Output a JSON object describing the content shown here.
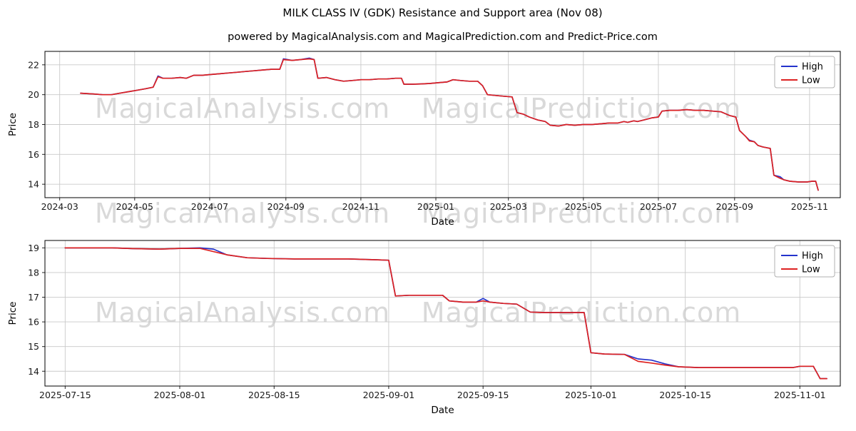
{
  "figure": {
    "title": "MILK CLASS IV (GDK) Resistance and Support area (Nov 08)",
    "watermark_left": "MagicalAnalysis.com",
    "watermark_right": "MagicalPrediction.com"
  },
  "chart_data": [
    {
      "type": "line",
      "title": "powered by MagicalAnalysis.com and MagicalPrediction.com and Predict-Price.com",
      "xlabel": "Date",
      "ylabel": "Price",
      "grid": true,
      "legend_position": "upper right",
      "xlim": [
        "2024-02-18",
        "2025-11-26"
      ],
      "ylim": [
        13.1,
        22.9
      ],
      "xticks": [
        [
          "2024-03-01",
          "2024-03"
        ],
        [
          "2024-05-01",
          "2024-05"
        ],
        [
          "2024-07-01",
          "2024-07"
        ],
        [
          "2024-09-01",
          "2024-09"
        ],
        [
          "2024-11-01",
          "2024-11"
        ],
        [
          "2025-01-01",
          "2025-01"
        ],
        [
          "2025-03-01",
          "2025-03"
        ],
        [
          "2025-05-01",
          "2025-05"
        ],
        [
          "2025-07-01",
          "2025-07"
        ],
        [
          "2025-09-01",
          "2025-09"
        ],
        [
          "2025-11-01",
          "2025-11"
        ]
      ],
      "yticks": [
        14,
        16,
        18,
        20,
        22
      ],
      "dates": [
        "2024-03-18",
        "2024-03-28",
        "2024-04-05",
        "2024-04-12",
        "2024-04-19",
        "2024-04-26",
        "2024-05-03",
        "2024-05-10",
        "2024-05-16",
        "2024-05-20",
        "2024-05-24",
        "2024-05-31",
        "2024-06-07",
        "2024-06-12",
        "2024-06-18",
        "2024-06-25",
        "2024-07-02",
        "2024-07-09",
        "2024-07-16",
        "2024-07-23",
        "2024-07-30",
        "2024-08-06",
        "2024-08-13",
        "2024-08-20",
        "2024-08-27",
        "2024-08-30",
        "2024-09-06",
        "2024-09-13",
        "2024-09-20",
        "2024-09-24",
        "2024-09-27",
        "2024-10-04",
        "2024-10-11",
        "2024-10-18",
        "2024-10-25",
        "2024-11-01",
        "2024-11-08",
        "2024-11-15",
        "2024-11-22",
        "2024-11-29",
        "2024-12-04",
        "2024-12-06",
        "2024-12-13",
        "2024-12-20",
        "2024-12-27",
        "2025-01-03",
        "2025-01-10",
        "2025-01-15",
        "2025-01-21",
        "2025-01-28",
        "2025-02-04",
        "2025-02-08",
        "2025-02-12",
        "2025-02-18",
        "2025-02-25",
        "2025-03-04",
        "2025-03-08",
        "2025-03-13",
        "2025-03-18",
        "2025-03-25",
        "2025-03-31",
        "2025-04-04",
        "2025-04-11",
        "2025-04-17",
        "2025-04-24",
        "2025-05-01",
        "2025-05-08",
        "2025-05-15",
        "2025-05-22",
        "2025-05-29",
        "2025-06-03",
        "2025-06-06",
        "2025-06-11",
        "2025-06-14",
        "2025-06-19",
        "2025-06-26",
        "2025-07-01",
        "2025-07-04",
        "2025-07-10",
        "2025-07-17",
        "2025-07-24",
        "2025-07-31",
        "2025-08-07",
        "2025-08-14",
        "2025-08-21",
        "2025-08-28",
        "2025-09-02",
        "2025-09-05",
        "2025-09-10",
        "2025-09-13",
        "2025-09-17",
        "2025-09-20",
        "2025-09-24",
        "2025-09-27",
        "2025-09-30",
        "2025-10-03",
        "2025-10-08",
        "2025-10-11",
        "2025-10-16",
        "2025-10-23",
        "2025-10-30",
        "2025-11-03",
        "2025-11-06",
        "2025-11-08"
      ],
      "series": [
        {
          "name": "High",
          "color": "#2433cc",
          "values": [
            20.1,
            20.05,
            20.0,
            20.0,
            20.1,
            20.2,
            20.3,
            20.4,
            20.5,
            21.25,
            21.1,
            21.1,
            21.15,
            21.1,
            21.3,
            21.3,
            21.35,
            21.4,
            21.45,
            21.5,
            21.55,
            21.6,
            21.65,
            21.7,
            21.7,
            22.4,
            22.3,
            22.35,
            22.45,
            22.35,
            21.1,
            21.15,
            21.0,
            20.9,
            20.95,
            21.0,
            21.0,
            21.05,
            21.05,
            21.1,
            21.1,
            20.7,
            20.7,
            20.72,
            20.75,
            20.8,
            20.85,
            21.0,
            20.95,
            20.9,
            20.9,
            20.6,
            20.0,
            19.95,
            19.9,
            19.85,
            18.8,
            18.7,
            18.5,
            18.3,
            18.2,
            17.95,
            17.9,
            18.0,
            17.95,
            18.0,
            18.0,
            18.05,
            18.1,
            18.1,
            18.2,
            18.15,
            18.25,
            18.2,
            18.3,
            18.45,
            18.5,
            18.9,
            18.95,
            18.95,
            19.0,
            18.95,
            18.95,
            18.9,
            18.85,
            18.6,
            18.5,
            17.6,
            17.2,
            16.95,
            16.85,
            16.6,
            16.5,
            16.45,
            16.4,
            14.6,
            14.5,
            14.3,
            14.2,
            14.15,
            14.15,
            14.2,
            14.2,
            13.6
          ]
        },
        {
          "name": "Low",
          "color": "#dd2222",
          "values": [
            20.1,
            20.05,
            20.0,
            20.0,
            20.1,
            20.2,
            20.3,
            20.4,
            20.5,
            21.2,
            21.1,
            21.1,
            21.15,
            21.1,
            21.3,
            21.3,
            21.35,
            21.4,
            21.45,
            21.5,
            21.55,
            21.6,
            21.65,
            21.7,
            21.7,
            22.35,
            22.3,
            22.35,
            22.4,
            22.35,
            21.1,
            21.15,
            21.0,
            20.9,
            20.95,
            21.0,
            21.0,
            21.05,
            21.05,
            21.1,
            21.1,
            20.7,
            20.7,
            20.72,
            20.75,
            20.8,
            20.85,
            21.0,
            20.95,
            20.9,
            20.9,
            20.6,
            20.0,
            19.95,
            19.9,
            19.85,
            18.8,
            18.7,
            18.5,
            18.3,
            18.2,
            17.95,
            17.9,
            18.0,
            17.95,
            18.0,
            18.0,
            18.05,
            18.1,
            18.1,
            18.2,
            18.15,
            18.25,
            18.2,
            18.3,
            18.45,
            18.5,
            18.9,
            18.95,
            18.95,
            19.0,
            18.95,
            18.95,
            18.9,
            18.85,
            18.6,
            18.5,
            17.6,
            17.2,
            16.9,
            16.85,
            16.6,
            16.5,
            16.45,
            16.4,
            14.6,
            14.4,
            14.3,
            14.2,
            14.15,
            14.15,
            14.2,
            14.2,
            13.6
          ]
        }
      ]
    },
    {
      "type": "line",
      "title": "",
      "xlabel": "Date",
      "ylabel": "Price",
      "grid": true,
      "legend_position": "upper right",
      "xlim": [
        "2025-07-12",
        "2025-11-07"
      ],
      "ylim": [
        13.4,
        19.3
      ],
      "xticks": [
        [
          "2025-07-15",
          "2025-07-15"
        ],
        [
          "2025-08-01",
          "2025-08-01"
        ],
        [
          "2025-08-15",
          "2025-08-15"
        ],
        [
          "2025-09-01",
          "2025-09-01"
        ],
        [
          "2025-09-15",
          "2025-09-15"
        ],
        [
          "2025-10-01",
          "2025-10-01"
        ],
        [
          "2025-10-15",
          "2025-10-15"
        ],
        [
          "2025-11-01",
          "2025-11-01"
        ]
      ],
      "yticks": [
        14,
        15,
        16,
        17,
        18,
        19
      ],
      "dates": [
        "2025-07-15",
        "2025-07-18",
        "2025-07-22",
        "2025-07-25",
        "2025-07-29",
        "2025-08-01",
        "2025-08-04",
        "2025-08-06",
        "2025-08-08",
        "2025-08-11",
        "2025-08-14",
        "2025-08-18",
        "2025-08-22",
        "2025-08-26",
        "2025-08-30",
        "2025-09-01",
        "2025-09-02",
        "2025-09-04",
        "2025-09-06",
        "2025-09-09",
        "2025-09-10",
        "2025-09-12",
        "2025-09-14",
        "2025-09-15",
        "2025-09-16",
        "2025-09-18",
        "2025-09-20",
        "2025-09-22",
        "2025-09-24",
        "2025-09-26",
        "2025-09-28",
        "2025-09-30",
        "2025-10-01",
        "2025-10-03",
        "2025-10-06",
        "2025-10-08",
        "2025-10-10",
        "2025-10-12",
        "2025-10-14",
        "2025-10-17",
        "2025-10-21",
        "2025-10-25",
        "2025-10-29",
        "2025-10-31",
        "2025-11-01",
        "2025-11-03",
        "2025-11-04",
        "2025-11-05"
      ],
      "series": [
        {
          "name": "High",
          "color": "#2433cc",
          "values": [
            19.0,
            19.0,
            19.0,
            18.97,
            18.95,
            18.98,
            19.0,
            18.95,
            18.72,
            18.6,
            18.57,
            18.55,
            18.55,
            18.55,
            18.52,
            18.5,
            17.05,
            17.08,
            17.08,
            17.08,
            16.85,
            16.8,
            16.8,
            16.95,
            16.8,
            16.75,
            16.72,
            16.4,
            16.38,
            16.38,
            16.38,
            16.38,
            14.75,
            14.7,
            14.68,
            14.5,
            14.45,
            14.3,
            14.18,
            14.15,
            14.15,
            14.15,
            14.15,
            14.15,
            14.2,
            14.2,
            13.7,
            13.7
          ]
        },
        {
          "name": "Low",
          "color": "#dd2222",
          "values": [
            19.0,
            19.0,
            19.0,
            18.97,
            18.95,
            18.98,
            18.98,
            18.85,
            18.72,
            18.6,
            18.57,
            18.55,
            18.55,
            18.55,
            18.52,
            18.5,
            17.05,
            17.08,
            17.08,
            17.08,
            16.85,
            16.8,
            16.8,
            16.85,
            16.8,
            16.75,
            16.72,
            16.4,
            16.38,
            16.38,
            16.38,
            16.38,
            14.75,
            14.7,
            14.68,
            14.4,
            14.33,
            14.25,
            14.18,
            14.15,
            14.15,
            14.15,
            14.15,
            14.15,
            14.2,
            14.2,
            13.7,
            13.7
          ]
        }
      ]
    }
  ]
}
